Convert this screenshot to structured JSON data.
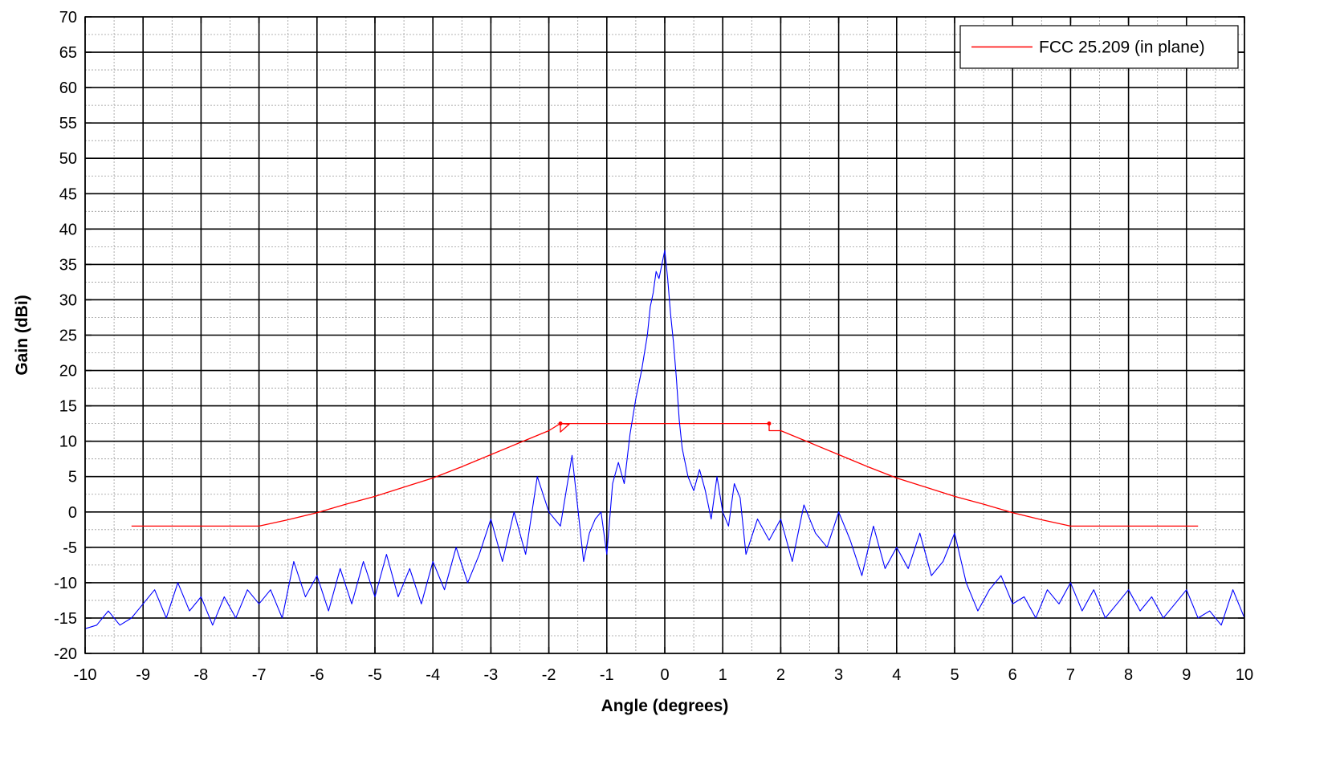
{
  "chart_data": {
    "type": "line",
    "title": "—",
    "xlabel": "Angle (degrees)",
    "ylabel": "Gain (dBi)",
    "xlim": [
      -10,
      10
    ],
    "ylim": [
      -20,
      70
    ],
    "x_major_ticks": [
      -10,
      -9,
      -8,
      -7,
      -6,
      -5,
      -4,
      -3,
      -2,
      -1,
      0,
      1,
      2,
      3,
      4,
      5,
      6,
      7,
      8,
      9,
      10
    ],
    "y_major_ticks": [
      -20,
      -15,
      -10,
      -5,
      0,
      5,
      10,
      15,
      20,
      25,
      30,
      35,
      40,
      45,
      50,
      55,
      60,
      65,
      70
    ],
    "x_minor_step": 0.5,
    "y_minor_step": 2.5,
    "grid": true,
    "legend_position": "top-right",
    "legend": [
      "FCC 25.209 (in plane)"
    ],
    "colors": {
      "measured": "#0000ff",
      "mask": "#ff0000"
    },
    "series": [
      {
        "name": "FCC 25.209 (in plane)",
        "color": "#ff0000",
        "x": [
          -9.2,
          -7.0,
          -6.5,
          -6.0,
          -5.5,
          -5.0,
          -4.5,
          -4.0,
          -3.5,
          -3.0,
          -2.5,
          -2.0,
          -1.8,
          -1.8,
          -1.65,
          -1.65,
          -1.8,
          1.8,
          1.8,
          2.0,
          2.5,
          3.0,
          3.5,
          4.0,
          4.5,
          5.0,
          5.5,
          6.0,
          6.5,
          7.0,
          9.2
        ],
        "y": [
          -2.0,
          -2.0,
          -1.1,
          -0.1,
          1.1,
          2.2,
          3.5,
          4.8,
          6.4,
          8.1,
          9.8,
          11.5,
          12.5,
          11.3,
          12.4,
          12.4,
          12.5,
          12.5,
          11.5,
          11.5,
          9.8,
          8.1,
          6.4,
          4.8,
          3.5,
          2.2,
          1.1,
          -0.1,
          -1.1,
          -2.0,
          -2.0
        ]
      },
      {
        "name": "",
        "color": "#0000ff",
        "x": [
          -10,
          -9.8,
          -9.6,
          -9.4,
          -9.2,
          -9.0,
          -8.8,
          -8.6,
          -8.4,
          -8.2,
          -8.0,
          -7.8,
          -7.6,
          -7.4,
          -7.2,
          -7.0,
          -6.8,
          -6.6,
          -6.4,
          -6.2,
          -6.0,
          -5.8,
          -5.6,
          -5.4,
          -5.2,
          -5.0,
          -4.8,
          -4.6,
          -4.4,
          -4.2,
          -4.0,
          -3.8,
          -3.6,
          -3.4,
          -3.2,
          -3.0,
          -2.8,
          -2.6,
          -2.4,
          -2.2,
          -2.0,
          -1.8,
          -1.6,
          -1.4,
          -1.3,
          -1.2,
          -1.1,
          -1.0,
          -0.9,
          -0.8,
          -0.7,
          -0.6,
          -0.5,
          -0.4,
          -0.3,
          -0.25,
          -0.2,
          -0.15,
          -0.1,
          -0.05,
          0.0,
          0.05,
          0.1,
          0.15,
          0.2,
          0.25,
          0.3,
          0.4,
          0.5,
          0.6,
          0.7,
          0.8,
          0.9,
          1.0,
          1.1,
          1.2,
          1.3,
          1.4,
          1.6,
          1.8,
          2.0,
          2.2,
          2.4,
          2.6,
          2.8,
          3.0,
          3.2,
          3.4,
          3.6,
          3.8,
          4.0,
          4.2,
          4.4,
          4.6,
          4.8,
          5.0,
          5.2,
          5.4,
          5.6,
          5.8,
          6.0,
          6.2,
          6.4,
          6.6,
          6.8,
          7.0,
          7.2,
          7.4,
          7.6,
          7.8,
          8.0,
          8.2,
          8.4,
          8.6,
          8.8,
          9.0,
          9.2,
          9.4,
          9.6,
          9.8,
          10.0
        ],
        "y": [
          -16.5,
          -16,
          -14,
          -16,
          -15,
          -13,
          -11,
          -15,
          -10,
          -14,
          -12,
          -16,
          -12,
          -15,
          -11,
          -13,
          -11,
          -15,
          -7,
          -12,
          -9,
          -14,
          -8,
          -13,
          -7,
          -12,
          -6,
          -12,
          -8,
          -13,
          -7,
          -11,
          -5,
          -10,
          -6,
          -1,
          -7,
          0,
          -6,
          5,
          0,
          -2,
          8,
          -7,
          -3,
          -1,
          0,
          -6,
          4,
          7,
          4,
          11,
          16,
          20,
          25,
          29,
          31,
          34,
          33,
          35,
          37,
          33,
          28,
          24,
          19,
          13,
          9,
          5,
          3,
          6,
          3,
          -1,
          5,
          0,
          -2,
          4,
          2,
          -6,
          -1,
          -4,
          -1,
          -7,
          1,
          -3,
          -5,
          0,
          -4,
          -9,
          -2,
          -8,
          -5,
          -8,
          -3,
          -9,
          -7,
          -3,
          -10,
          -14,
          -11,
          -9,
          -13,
          -12,
          -15,
          -11,
          -13,
          -10,
          -14,
          -11,
          -15,
          -13,
          -11,
          -14,
          -12,
          -15,
          -13,
          -11,
          -15,
          -14,
          -16,
          -11,
          -15
        ]
      }
    ]
  }
}
